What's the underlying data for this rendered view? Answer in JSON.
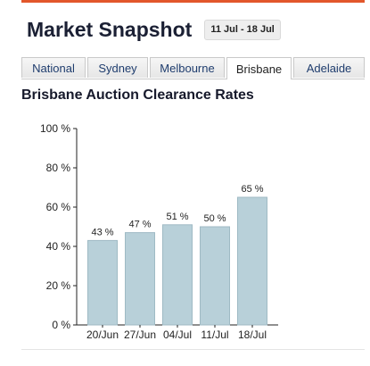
{
  "header": {
    "title": "Market Snapshot",
    "date_range": "11 Jul - 18 Jul"
  },
  "tabs": [
    {
      "label": "National",
      "active": false
    },
    {
      "label": "Sydney",
      "active": false
    },
    {
      "label": "Melbourne",
      "active": false
    },
    {
      "label": "Brisbane",
      "active": true
    },
    {
      "label": "Adelaide",
      "active": false
    }
  ],
  "chart_heading": "Brisbane Auction Clearance Rates",
  "colors": {
    "accent": "#e2572b",
    "bar_fill": "#b8d0d9",
    "bar_stroke": "#9fbac4"
  },
  "chart_data": {
    "type": "bar",
    "categories": [
      "20/Jun",
      "27/Jun",
      "04/Jul",
      "11/Jul",
      "18/Jul"
    ],
    "values": [
      43,
      47,
      51,
      50,
      65
    ],
    "data_labels": [
      "43 %",
      "47 %",
      "51 %",
      "50 %",
      "65 %"
    ],
    "title": "",
    "xlabel": "",
    "ylabel": "",
    "ylim": [
      0,
      100
    ],
    "yticks": [
      0,
      20,
      40,
      60,
      80,
      100
    ],
    "ytick_labels": [
      "0 %",
      "20 %",
      "40 %",
      "60 %",
      "80 %",
      "100 %"
    ],
    "grid": false,
    "legend": "none"
  }
}
